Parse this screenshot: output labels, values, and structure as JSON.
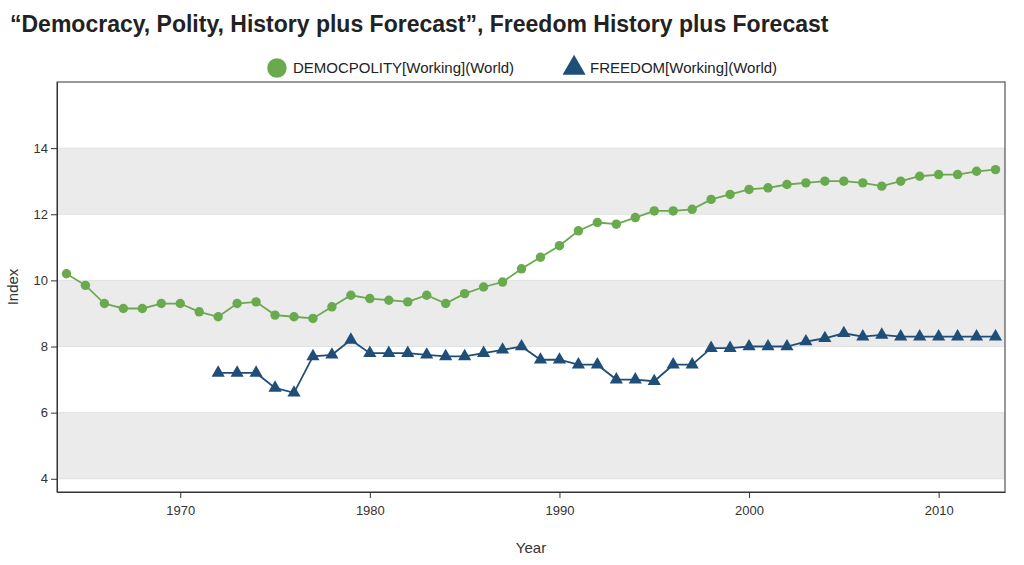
{
  "chart_data": {
    "type": "line",
    "title": "“Democracy, Polity, History plus Forecast”, Freedom History plus Forecast",
    "x_label": "Year",
    "y_label": "Index",
    "x": [
      1964,
      1965,
      1966,
      1967,
      1968,
      1969,
      1970,
      1971,
      1972,
      1973,
      1974,
      1975,
      1976,
      1977,
      1978,
      1979,
      1980,
      1981,
      1982,
      1983,
      1984,
      1985,
      1986,
      1987,
      1988,
      1989,
      1990,
      1991,
      1992,
      1993,
      1994,
      1995,
      1996,
      1997,
      1998,
      1999,
      2000,
      2001,
      2002,
      2003,
      2004,
      2005,
      2006,
      2007,
      2008,
      2009,
      2010,
      2011,
      2012,
      2013
    ],
    "series": [
      {
        "name": "DEMOCPOLITY[Working](World)",
        "color": "#6aaa4f",
        "marker": "circle",
        "values": [
          10.2,
          9.85,
          9.3,
          9.15,
          9.15,
          9.3,
          9.3,
          9.05,
          8.9,
          9.3,
          9.35,
          8.95,
          8.9,
          8.85,
          9.2,
          9.55,
          9.45,
          9.4,
          9.35,
          9.55,
          9.3,
          9.6,
          9.8,
          9.95,
          10.35,
          10.7,
          11.05,
          11.5,
          11.75,
          11.7,
          11.9,
          12.1,
          12.1,
          12.15,
          12.45,
          12.6,
          12.75,
          12.8,
          12.9,
          12.95,
          13.0,
          13.0,
          12.95,
          12.85,
          13.0,
          13.15,
          13.2,
          13.2,
          13.3,
          13.35
        ]
      },
      {
        "name": "FREEDOM[Working](World)",
        "color": "#1f4e79",
        "marker": "triangle",
        "values": [
          null,
          null,
          null,
          null,
          null,
          null,
          null,
          null,
          7.2,
          7.2,
          7.2,
          6.75,
          6.6,
          7.7,
          7.75,
          8.2,
          7.8,
          7.8,
          7.8,
          7.75,
          7.7,
          7.7,
          7.8,
          7.9,
          8.0,
          7.6,
          7.6,
          7.45,
          7.45,
          7.0,
          7.0,
          6.95,
          7.45,
          7.45,
          7.95,
          7.95,
          8.0,
          8.0,
          8.0,
          8.15,
          8.25,
          8.4,
          8.3,
          8.35,
          8.3,
          8.3,
          8.3,
          8.3,
          8.3,
          8.3
        ]
      }
    ],
    "xlim": [
      1963.5,
      2013.5
    ],
    "ylim": [
      3.6,
      16
    ],
    "xticks": [
      1970,
      1980,
      1990,
      2000,
      2010
    ],
    "yticks": [
      4,
      6,
      8,
      10,
      12,
      14
    ],
    "grid": true,
    "legend": "top"
  }
}
